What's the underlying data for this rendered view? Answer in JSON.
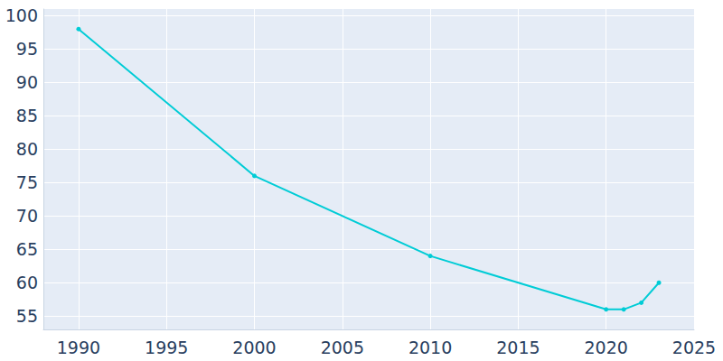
{
  "chart_data": {
    "type": "line",
    "x": [
      1990,
      2000,
      2010,
      2020,
      2021,
      2022,
      2023
    ],
    "values": [
      98,
      76,
      64,
      56,
      56,
      57,
      60
    ],
    "color": "#00ccd6",
    "marker": "circle",
    "line_style": "solid",
    "xlim": [
      1988,
      2025
    ],
    "xticks": [
      1990,
      1995,
      2000,
      2005,
      2010,
      2015,
      2020,
      2025
    ],
    "ylim": [
      53,
      101
    ],
    "yticks": [
      55,
      60,
      65,
      70,
      75,
      80,
      85,
      90,
      95,
      100
    ],
    "grid": true
  }
}
